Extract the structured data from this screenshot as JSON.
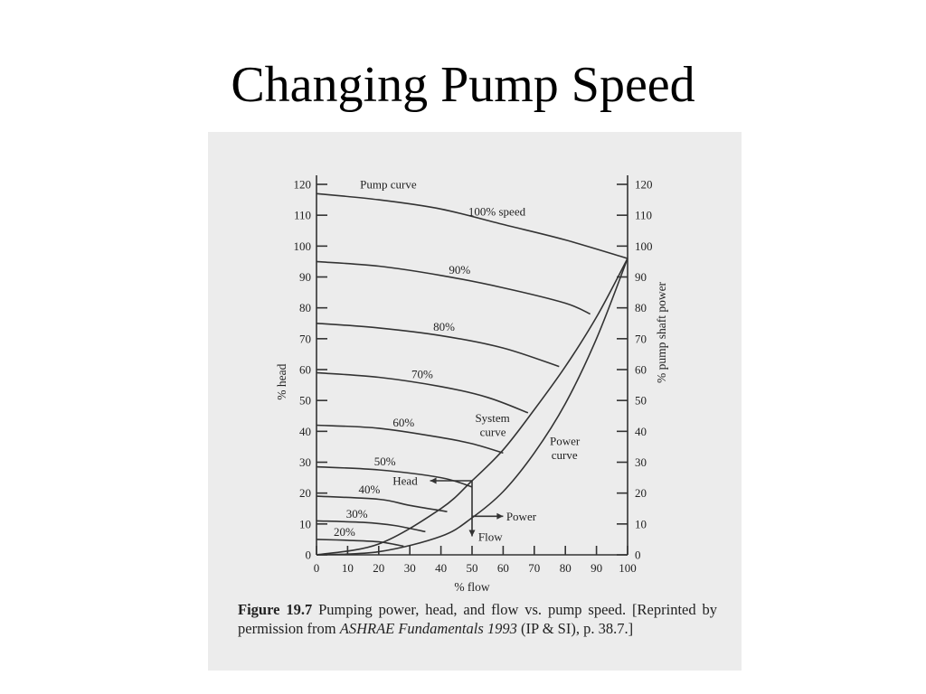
{
  "slide": {
    "title": "Changing Pump Speed"
  },
  "caption": {
    "figure_label": "Figure 19.7",
    "figure_text": "Pumping power, head, and flow vs. pump speed.",
    "reprint_prefix": "[Reprinted by permission from",
    "source_title": "ASHRAE Fundamentals 1993",
    "reprint_suffix": "(IP & SI), p. 38.7.]"
  },
  "chart_data": {
    "type": "line",
    "xlabel": "% flow",
    "ylabel_left": "% head",
    "ylabel_right": "% pump shaft power",
    "xlim": [
      0,
      100
    ],
    "ylim": [
      0,
      120
    ],
    "x_ticks": [
      0,
      10,
      20,
      30,
      40,
      50,
      60,
      70,
      80,
      90,
      100
    ],
    "y_ticks": [
      0,
      10,
      20,
      30,
      40,
      50,
      60,
      70,
      80,
      90,
      100,
      110,
      120
    ],
    "grid": false,
    "pump_curve_label": "Pump curve",
    "speed_curves": [
      {
        "label": "100% speed",
        "x": [
          0,
          20,
          40,
          60,
          80,
          100
        ],
        "y": [
          117,
          115,
          112,
          107,
          102,
          96
        ]
      },
      {
        "label": "90%",
        "x": [
          0,
          20,
          40,
          60,
          80,
          88
        ],
        "y": [
          95,
          93.5,
          90.5,
          86.5,
          81.5,
          78
        ]
      },
      {
        "label": "80%",
        "x": [
          0,
          20,
          40,
          60,
          78
        ],
        "y": [
          75,
          73.5,
          71,
          67,
          61
        ]
      },
      {
        "label": "70%",
        "x": [
          0,
          20,
          40,
          55,
          68
        ],
        "y": [
          59,
          57.5,
          54.5,
          51,
          46
        ]
      },
      {
        "label": "60%",
        "x": [
          0,
          20,
          40,
          50,
          60
        ],
        "y": [
          42,
          41,
          38,
          36,
          33
        ]
      },
      {
        "label": "50%",
        "x": [
          0,
          20,
          40,
          50
        ],
        "y": [
          28.5,
          27.5,
          25,
          22
        ]
      },
      {
        "label": "40%",
        "x": [
          0,
          20,
          30,
          42
        ],
        "y": [
          19,
          18,
          16,
          14
        ]
      },
      {
        "label": "30%",
        "x": [
          0,
          15,
          25,
          35
        ],
        "y": [
          11,
          10.5,
          9.5,
          7.5
        ]
      },
      {
        "label": "20%",
        "x": [
          0,
          10,
          20,
          28
        ],
        "y": [
          5,
          4.7,
          4.2,
          2.8
        ]
      }
    ],
    "system_curve": {
      "label_1": "System",
      "label_2": "curve",
      "x": [
        0,
        20,
        40,
        50,
        60,
        70,
        80,
        90,
        100
      ],
      "y": [
        0,
        3.5,
        15,
        24,
        34,
        47,
        61,
        77,
        96
      ]
    },
    "power_curve": {
      "label_1": "Power",
      "label_2": "curve",
      "x": [
        0,
        20,
        40,
        50,
        60,
        70,
        80,
        90,
        100
      ],
      "y": [
        0,
        1,
        6,
        12,
        20.5,
        33,
        49,
        70,
        96
      ]
    },
    "operating_point": {
      "x": 50,
      "head": 24,
      "power": 12
    },
    "annotations": {
      "head": "Head",
      "power": "Power",
      "flow": "Flow"
    }
  }
}
